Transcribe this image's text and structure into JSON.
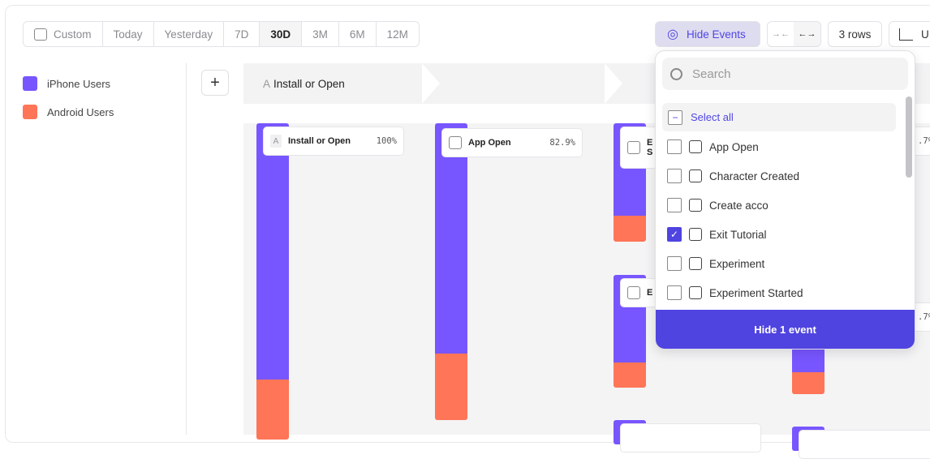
{
  "date_range": {
    "options": [
      "Custom",
      "Today",
      "Yesterday",
      "7D",
      "30D",
      "3M",
      "6M",
      "12M"
    ],
    "selected": "30D"
  },
  "toolbar": {
    "hide_events": "Hide Events",
    "rows": "3 rows",
    "chart_type_partial": "U"
  },
  "legend": [
    {
      "label": "iPhone Users",
      "color": "#7856ff"
    },
    {
      "label": "Android Users",
      "color": "#ff7557"
    }
  ],
  "steps": {
    "first": {
      "letter": "A",
      "label": "Install or Open"
    }
  },
  "nodes": [
    {
      "badge": "A",
      "label": "Install or Open",
      "pct": "100%"
    },
    {
      "label": "App Open",
      "pct": "82.9%"
    },
    {
      "label": "E",
      "sub": "S"
    },
    {
      "label": "E"
    },
    {
      "pct_partial": ".7%"
    },
    {
      "pct_partial": ".7%"
    }
  ],
  "dropdown": {
    "search_placeholder": "Search",
    "select_all": "Select all",
    "items": [
      {
        "label": "App Open",
        "checked": false
      },
      {
        "label": "Character Created",
        "checked": false
      },
      {
        "label": "Create acco",
        "checked": false
      },
      {
        "label": "Exit Tutorial",
        "checked": true
      },
      {
        "label": "Experiment",
        "checked": false
      },
      {
        "label": "Experiment Started",
        "checked": false
      }
    ],
    "action": "Hide 1 event"
  },
  "colors": {
    "accent": "#4f44e0",
    "iphone": "#7856ff",
    "android": "#ff7557"
  }
}
